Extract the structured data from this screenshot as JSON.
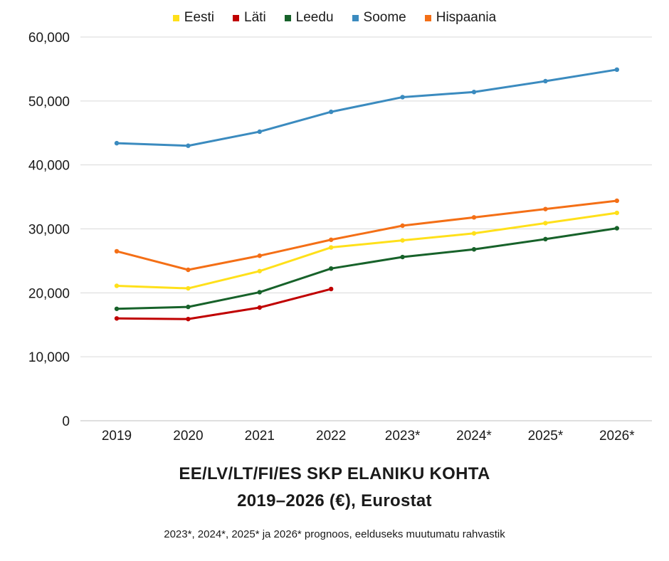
{
  "chart_data": {
    "type": "line",
    "title_line1": "EE/LV/LT/FI/ES SKP ELANIKU KOHTA",
    "title_line2": "2019–2026 (€), Eurostat",
    "note": "2023*, 2024*, 2025* ja 2026* prognoos, eelduseks muutumatu rahvastik",
    "categories": [
      "2019",
      "2020",
      "2021",
      "2022",
      "2023*",
      "2024*",
      "2025*",
      "2026*"
    ],
    "ylim": [
      0,
      60000
    ],
    "yticks": [
      "0",
      "10,000",
      "20,000",
      "30,000",
      "40,000",
      "50,000",
      "60,000"
    ],
    "grid": true,
    "legend_position": "top-center",
    "series": [
      {
        "name": "Eesti",
        "color": "#ffe01a",
        "values": [
          21100,
          20700,
          23400,
          27100,
          28200,
          29300,
          30900,
          32500
        ]
      },
      {
        "name": "Läti",
        "color": "#c00000",
        "values": [
          16000,
          15900,
          17700,
          20600,
          null,
          null,
          null,
          null
        ]
      },
      {
        "name": "Leedu",
        "color": "#17622a",
        "values": [
          17500,
          17800,
          20100,
          23800,
          25600,
          26800,
          28400,
          30100
        ]
      },
      {
        "name": "Soome",
        "color": "#3b8bbf",
        "values": [
          43400,
          43000,
          45200,
          48300,
          50600,
          51400,
          53100,
          54900
        ]
      },
      {
        "name": "Hispaania",
        "color": "#f46f16",
        "values": [
          26500,
          23600,
          25800,
          28300,
          30500,
          31800,
          33100,
          34400
        ]
      }
    ]
  }
}
